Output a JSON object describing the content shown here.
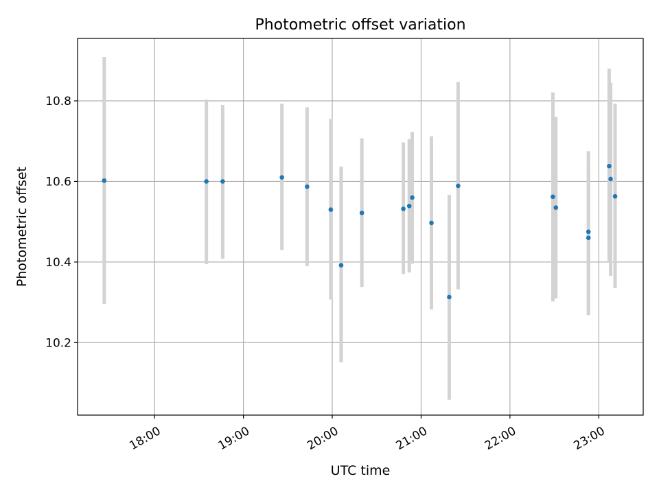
{
  "chart_data": {
    "type": "scatter",
    "title": "Photometric offset variation",
    "xlabel": "UTC time",
    "ylabel": "Photometric offset",
    "grid": true,
    "xlim": [
      "17:08",
      "23:30"
    ],
    "ylim": [
      10.02,
      10.955
    ],
    "x_ticks": [
      "18:00",
      "19:00",
      "20:00",
      "21:00",
      "22:00",
      "23:00"
    ],
    "y_ticks": [
      10.2,
      10.4,
      10.6,
      10.8
    ],
    "y_tick_labels": [
      "10.2",
      "10.4",
      "10.6",
      "10.8"
    ],
    "colors": {
      "marker": "#1f77b4",
      "errorbar": "#d3d3d3",
      "grid": "#b0b0b0"
    },
    "points": [
      {
        "x": "17:26",
        "y": 10.602,
        "ylow": 10.296,
        "yhigh": 10.909
      },
      {
        "x": "18:35",
        "y": 10.6,
        "ylow": 10.395,
        "yhigh": 10.803
      },
      {
        "x": "18:46",
        "y": 10.6,
        "ylow": 10.408,
        "yhigh": 10.79
      },
      {
        "x": "19:26",
        "y": 10.61,
        "ylow": 10.43,
        "yhigh": 10.793
      },
      {
        "x": "19:43",
        "y": 10.587,
        "ylow": 10.39,
        "yhigh": 10.784
      },
      {
        "x": "19:59",
        "y": 10.53,
        "ylow": 10.307,
        "yhigh": 10.755
      },
      {
        "x": "20:06",
        "y": 10.392,
        "ylow": 10.151,
        "yhigh": 10.637
      },
      {
        "x": "20:20",
        "y": 10.522,
        "ylow": 10.338,
        "yhigh": 10.707
      },
      {
        "x": "20:48",
        "y": 10.532,
        "ylow": 10.37,
        "yhigh": 10.697
      },
      {
        "x": "20:52",
        "y": 10.539,
        "ylow": 10.374,
        "yhigh": 10.705
      },
      {
        "x": "20:54",
        "y": 10.56,
        "ylow": 10.396,
        "yhigh": 10.723
      },
      {
        "x": "21:07",
        "y": 10.497,
        "ylow": 10.282,
        "yhigh": 10.712
      },
      {
        "x": "21:19",
        "y": 10.313,
        "ylow": 10.058,
        "yhigh": 10.567
      },
      {
        "x": "21:25",
        "y": 10.589,
        "ylow": 10.332,
        "yhigh": 10.847
      },
      {
        "x": "22:29",
        "y": 10.562,
        "ylow": 10.302,
        "yhigh": 10.821
      },
      {
        "x": "22:31",
        "y": 10.535,
        "ylow": 10.31,
        "yhigh": 10.76
      },
      {
        "x": "22:53",
        "y": 10.475,
        "ylow": 10.271,
        "yhigh": 10.675
      },
      {
        "x": "22:53",
        "y": 10.46,
        "ylow": 10.268,
        "yhigh": 10.65
      },
      {
        "x": "23:07",
        "y": 10.638,
        "ylow": 10.4,
        "yhigh": 10.88
      },
      {
        "x": "23:08",
        "y": 10.606,
        "ylow": 10.366,
        "yhigh": 10.845
      },
      {
        "x": "23:11",
        "y": 10.563,
        "ylow": 10.335,
        "yhigh": 10.793
      }
    ]
  }
}
